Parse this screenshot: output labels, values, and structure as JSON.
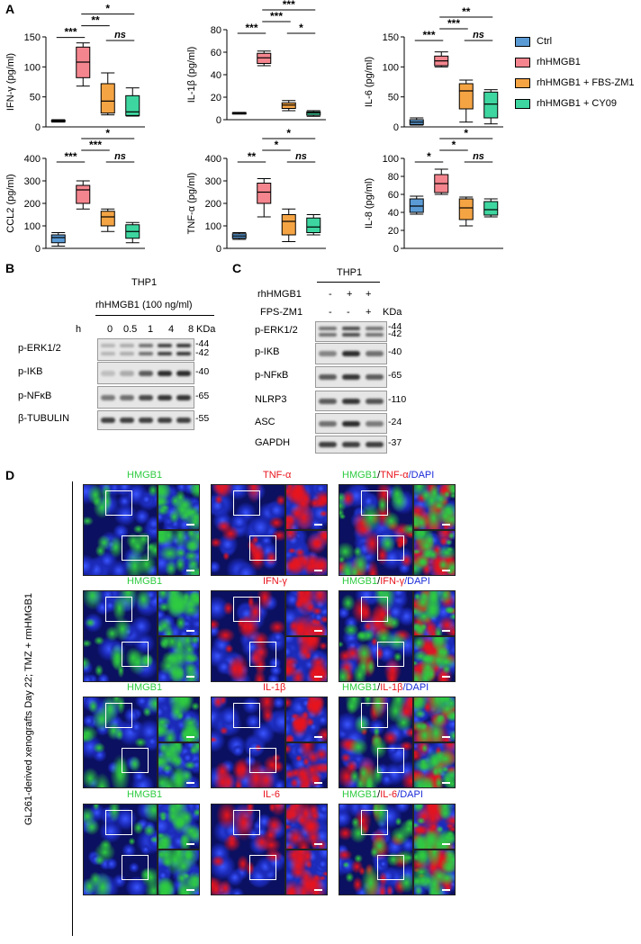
{
  "panel_labels": {
    "a": "A",
    "b": "B",
    "c": "C",
    "d": "D"
  },
  "legend": [
    {
      "label": "Ctrl",
      "color": "#5b9bd5"
    },
    {
      "label": "rhHMGB1",
      "color": "#f4858e"
    },
    {
      "label": "rhHMGB1 + FBS-ZM1",
      "color": "#f5a444"
    },
    {
      "label": "rhHMGB1 + CY09",
      "color": "#3ed6a0"
    }
  ],
  "chart_data": [
    {
      "type": "box",
      "ylabel": "IFN-γ (pg/ml)",
      "ylim": [
        0,
        150
      ],
      "yticks": [
        0,
        50,
        100,
        150
      ],
      "series": [
        {
          "name": "Ctrl",
          "min": 8,
          "q1": 9,
          "median": 10,
          "q3": 11,
          "max": 12
        },
        {
          "name": "rhHMGB1",
          "min": 68,
          "q1": 82,
          "median": 108,
          "q3": 133,
          "max": 140
        },
        {
          "name": "rhHMGB1 + FBS-ZM1",
          "min": 20,
          "q1": 23,
          "median": 43,
          "q3": 72,
          "max": 90
        },
        {
          "name": "rhHMGB1 + CY09",
          "min": 18,
          "q1": 19,
          "median": 25,
          "q3": 52,
          "max": 65
        }
      ],
      "significance": [
        {
          "from": 0,
          "to": 1,
          "label": "***",
          "level": 0
        },
        {
          "from": 1,
          "to": 2,
          "label": "**",
          "level": 1
        },
        {
          "from": 2,
          "to": 3,
          "label": "ns",
          "level": 0
        },
        {
          "from": 1,
          "to": 3,
          "label": "*",
          "level": 2
        }
      ]
    },
    {
      "type": "box",
      "ylabel": "IL-1β (pg/ml)",
      "ylim": [
        0,
        80
      ],
      "yticks": [
        0,
        20,
        40,
        60,
        80
      ],
      "series": [
        {
          "name": "Ctrl",
          "min": 5,
          "q1": 5.5,
          "median": 6,
          "q3": 6.3,
          "max": 6.5
        },
        {
          "name": "rhHMGB1",
          "min": 48,
          "q1": 50,
          "median": 55,
          "q3": 59,
          "max": 61
        },
        {
          "name": "rhHMGB1 + FBS-ZM1",
          "min": 8,
          "q1": 10,
          "median": 13,
          "q3": 15,
          "max": 17
        },
        {
          "name": "rhHMGB1 + CY09",
          "min": 3,
          "q1": 4,
          "median": 6,
          "q3": 7,
          "max": 8
        }
      ],
      "significance": [
        {
          "from": 0,
          "to": 1,
          "label": "***",
          "level": 0
        },
        {
          "from": 1,
          "to": 2,
          "label": "***",
          "level": 1
        },
        {
          "from": 2,
          "to": 3,
          "label": "*",
          "level": 0
        },
        {
          "from": 1,
          "to": 3,
          "label": "***",
          "level": 2
        }
      ]
    },
    {
      "type": "box",
      "ylabel": "IL-6 (pg/ml)",
      "ylim": [
        0,
        150
      ],
      "yticks": [
        0,
        50,
        100,
        150
      ],
      "series": [
        {
          "name": "Ctrl",
          "min": 3,
          "q1": 4,
          "median": 8,
          "q3": 12,
          "max": 15
        },
        {
          "name": "rhHMGB1",
          "min": 100,
          "q1": 102,
          "median": 110,
          "q3": 118,
          "max": 125
        },
        {
          "name": "rhHMGB1 + FBS-ZM1",
          "min": 8,
          "q1": 30,
          "median": 60,
          "q3": 72,
          "max": 78
        },
        {
          "name": "rhHMGB1 + CY09",
          "min": 5,
          "q1": 15,
          "median": 38,
          "q3": 58,
          "max": 62
        }
      ],
      "significance": [
        {
          "from": 0,
          "to": 1,
          "label": "***",
          "level": 0
        },
        {
          "from": 1,
          "to": 2,
          "label": "***",
          "level": 1
        },
        {
          "from": 2,
          "to": 3,
          "label": "ns",
          "level": 0
        },
        {
          "from": 1,
          "to": 3,
          "label": "**",
          "level": 2
        }
      ]
    },
    {
      "type": "box",
      "ylabel": "CCL2 (pg/ml)",
      "ylim": [
        0,
        400
      ],
      "yticks": [
        0,
        100,
        200,
        300,
        400
      ],
      "series": [
        {
          "name": "Ctrl",
          "min": 10,
          "q1": 25,
          "median": 48,
          "q3": 60,
          "max": 70
        },
        {
          "name": "rhHMGB1",
          "min": 175,
          "q1": 200,
          "median": 260,
          "q3": 280,
          "max": 300
        },
        {
          "name": "rhHMGB1 + FBS-ZM1",
          "min": 75,
          "q1": 100,
          "median": 140,
          "q3": 165,
          "max": 175
        },
        {
          "name": "rhHMGB1 + CY09",
          "min": 25,
          "q1": 45,
          "median": 75,
          "q3": 105,
          "max": 115
        }
      ],
      "significance": [
        {
          "from": 0,
          "to": 1,
          "label": "***",
          "level": 0
        },
        {
          "from": 1,
          "to": 2,
          "label": "***",
          "level": 1
        },
        {
          "from": 2,
          "to": 3,
          "label": "ns",
          "level": 0
        },
        {
          "from": 1,
          "to": 3,
          "label": "*",
          "level": 2
        }
      ]
    },
    {
      "type": "box",
      "ylabel": "TNF-α (pg/ml)",
      "ylim": [
        0,
        400
      ],
      "yticks": [
        0,
        100,
        200,
        300,
        400
      ],
      "series": [
        {
          "name": "Ctrl",
          "min": 40,
          "q1": 45,
          "median": 55,
          "q3": 65,
          "max": 70
        },
        {
          "name": "rhHMGB1",
          "min": 140,
          "q1": 200,
          "median": 250,
          "q3": 290,
          "max": 310
        },
        {
          "name": "rhHMGB1 + FBS-ZM1",
          "min": 30,
          "q1": 60,
          "median": 120,
          "q3": 150,
          "max": 175
        },
        {
          "name": "rhHMGB1 + CY09",
          "min": 60,
          "q1": 70,
          "median": 95,
          "q3": 135,
          "max": 150
        }
      ],
      "significance": [
        {
          "from": 0,
          "to": 1,
          "label": "**",
          "level": 0
        },
        {
          "from": 1,
          "to": 2,
          "label": "*",
          "level": 1
        },
        {
          "from": 2,
          "to": 3,
          "label": "ns",
          "level": 0
        },
        {
          "from": 1,
          "to": 3,
          "label": "*",
          "level": 2
        }
      ]
    },
    {
      "type": "box",
      "ylabel": "IL-8 (pg/ml)",
      "ylim": [
        0,
        100
      ],
      "yticks": [
        0,
        20,
        40,
        60,
        80,
        100
      ],
      "series": [
        {
          "name": "Ctrl",
          "min": 38,
          "q1": 40,
          "median": 47,
          "q3": 55,
          "max": 58
        },
        {
          "name": "rhHMGB1",
          "min": 60,
          "q1": 62,
          "median": 72,
          "q3": 82,
          "max": 88
        },
        {
          "name": "rhHMGB1 + FBS-ZM1",
          "min": 25,
          "q1": 32,
          "median": 45,
          "q3": 55,
          "max": 57
        },
        {
          "name": "rhHMGB1 + CY09",
          "min": 35,
          "q1": 37,
          "median": 43,
          "q3": 52,
          "max": 55
        }
      ],
      "significance": [
        {
          "from": 0,
          "to": 1,
          "label": "*",
          "level": 0
        },
        {
          "from": 1,
          "to": 2,
          "label": "*",
          "level": 1
        },
        {
          "from": 2,
          "to": 3,
          "label": "ns",
          "level": 0
        },
        {
          "from": 1,
          "to": 3,
          "label": "*",
          "level": 2
        }
      ]
    }
  ],
  "panel_b": {
    "cell_line": "THP1",
    "treatment": "rhHMGB1 (100 ng/ml)",
    "time_label": "h",
    "timepoints": [
      "0",
      "0.5",
      "1",
      "4",
      "8"
    ],
    "kda_label": "KDa",
    "rows": [
      {
        "label": "p-ERK1/2",
        "kda": [
          "-44",
          "-42"
        ],
        "intensity": [
          0.25,
          0.3,
          0.6,
          0.85,
          0.9
        ],
        "double": true
      },
      {
        "label": "p-IKB",
        "kda": [
          "-40"
        ],
        "intensity": [
          0.2,
          0.3,
          0.7,
          0.95,
          0.95
        ],
        "double": false
      },
      {
        "label": "p-NFκB",
        "kda": [
          "-65"
        ],
        "intensity": [
          0.55,
          0.6,
          0.8,
          0.9,
          0.9
        ],
        "double": false
      },
      {
        "label": "β-TUBULIN",
        "kda": [
          "-55"
        ],
        "intensity": [
          0.85,
          0.85,
          0.85,
          0.85,
          0.85
        ],
        "double": false
      }
    ]
  },
  "panel_c": {
    "cell_line": "THP1",
    "conditions": [
      {
        "label": "rhHMGB1",
        "values": [
          "-",
          "+",
          "+"
        ]
      },
      {
        "label": "FPS-ZM1",
        "values": [
          "-",
          "-",
          "+"
        ]
      }
    ],
    "kda_label": "KDa",
    "rows": [
      {
        "label": "p-ERK1/2",
        "kda": [
          "-44",
          "-42"
        ],
        "intensity": [
          0.6,
          0.8,
          0.6
        ],
        "double": true
      },
      {
        "label": "p-IKB",
        "kda": [
          "-40"
        ],
        "intensity": [
          0.5,
          0.95,
          0.6
        ],
        "double": false
      },
      {
        "label": "p-NFκB",
        "kda": [
          "-65"
        ],
        "intensity": [
          0.7,
          0.9,
          0.7
        ],
        "double": false
      },
      {
        "label": "NLRP3",
        "kda": [
          "-110"
        ],
        "intensity": [
          0.7,
          0.9,
          0.75
        ],
        "double": false
      },
      {
        "label": "ASC",
        "kda": [
          "-24"
        ],
        "intensity": [
          0.6,
          0.95,
          0.55
        ],
        "double": false
      },
      {
        "label": "GAPDH",
        "kda": [
          "-37"
        ],
        "intensity": [
          0.85,
          0.85,
          0.85
        ],
        "double": false
      }
    ]
  },
  "panel_d": {
    "side_label": "GL261-derived xenografts Day 22; TMZ + rmHMGB1",
    "rows": [
      {
        "green": "HMGB1",
        "red": "TNF-α"
      },
      {
        "green": "HMGB1",
        "red": "IFN-γ"
      },
      {
        "green": "HMGB1",
        "red": "IL-1β"
      },
      {
        "green": "HMGB1",
        "red": "IL-6"
      }
    ],
    "merge_sep": "/",
    "dapi": "/DAPI",
    "colors": {
      "green": "#2ecc40",
      "red": "#e8141c",
      "blue": "#1a2bd8"
    }
  }
}
